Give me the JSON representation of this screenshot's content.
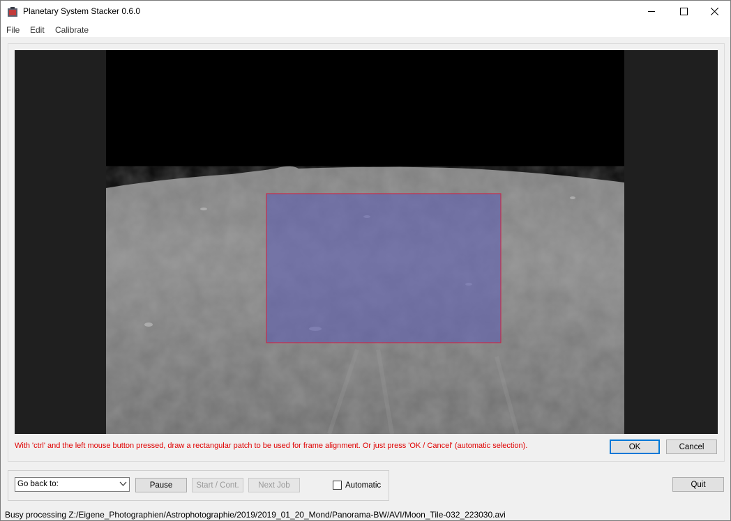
{
  "window": {
    "title": "Planetary System Stacker 0.6.0"
  },
  "menu": {
    "items": [
      "File",
      "Edit",
      "Calibrate"
    ]
  },
  "alignment_panel": {
    "hint": "With 'ctrl' and the left mouse button pressed, draw a rectangular patch to be used for frame alignment. Or just press 'OK / Cancel' (automatic selection).",
    "ok_label": "OK",
    "cancel_label": "Cancel"
  },
  "controls": {
    "goback_label": "Go back to:",
    "pause_label": "Pause",
    "start_label": "Start / Cont.",
    "nextjob_label": "Next Job",
    "automatic_label": "Automatic",
    "automatic_checked": false,
    "quit_label": "Quit"
  },
  "status": {
    "text": "Busy processing Z:/Eigene_Photographien/Astrophotographie/2019/2019_01_20_Mond/Panorama-BW/AVI/Moon_Tile-032_223030.avi"
  },
  "colors": {
    "accent": "#0078d7",
    "hint": "#e00000",
    "selection_fill": "#5a5ab4",
    "selection_border": "#d81b3a"
  }
}
